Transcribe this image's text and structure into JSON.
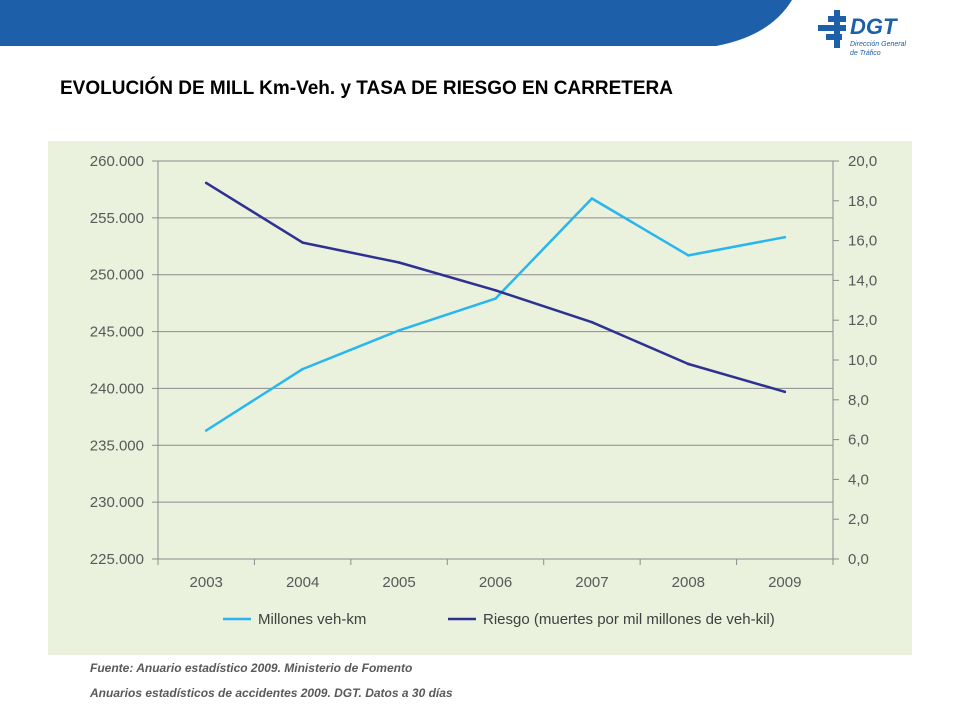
{
  "header": {
    "logo_text": "DGT",
    "logo_subtitle_line1": "Dirección General",
    "logo_subtitle_line2": "de Tráfico"
  },
  "title": "EVOLUCIÓN DE MILL Km-Veh. y TASA DE RIESGO EN CARRETERA",
  "source_lines": [
    "Fuente:  Anuario estadístico 2009. Ministerio de Fomento",
    "Anuarios estadísticos  de accidentes 2009. DGT. Datos a 30 días"
  ],
  "colors": {
    "brand_blue": "#1d5fa8",
    "light_series": "#29b6f0",
    "dark_series": "#2e3192",
    "panel_bg": "#eaf1dd",
    "gridline": "#8c8c8c"
  },
  "chart_data": {
    "type": "line",
    "title": "",
    "categories": [
      "2003",
      "2004",
      "2005",
      "2006",
      "2007",
      "2008",
      "2009"
    ],
    "y_left": {
      "range": [
        225000,
        260000
      ],
      "ticks": [
        225000,
        230000,
        235000,
        240000,
        245000,
        250000,
        255000,
        260000
      ],
      "tick_labels": [
        "225.000",
        "230.000",
        "235.000",
        "240.000",
        "245.000",
        "250.000",
        "255.000",
        "260.000"
      ]
    },
    "y_right": {
      "range": [
        0,
        20
      ],
      "ticks": [
        0,
        2,
        4,
        6,
        8,
        10,
        12,
        14,
        16,
        18,
        20
      ],
      "tick_labels": [
        "0,0",
        "2,0",
        "4,0",
        "6,0",
        "8,0",
        "10,0",
        "12,0",
        "14,0",
        "16,0",
        "18,0",
        "20,0"
      ]
    },
    "grid": true,
    "legend_position": "bottom",
    "series": [
      {
        "name": "Millones veh-km",
        "axis": "left",
        "color": "#29b6f0",
        "values": [
          236300,
          241700,
          245100,
          247900,
          256700,
          251700,
          253300
        ]
      },
      {
        "name": "Riesgo (muertes por mil millones de veh-kil)",
        "axis": "right",
        "color": "#2e3192",
        "values": [
          18.9,
          15.9,
          14.9,
          13.5,
          11.9,
          9.8,
          8.4
        ]
      }
    ]
  }
}
